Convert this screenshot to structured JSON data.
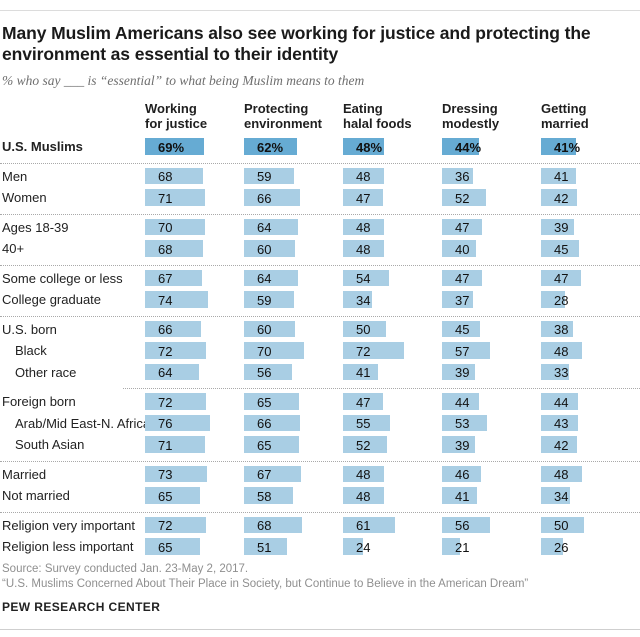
{
  "colors": {
    "bar_highlight": "#66abd3",
    "bar_default": "#a9cee4"
  },
  "chart_data": {
    "type": "bar",
    "title": "Many Muslim Americans also see working for justice and protecting the\nenvironment as essential to their identity",
    "subtitle": "% who say ___ is “essential” to what being Muslim means to them",
    "unit": "%",
    "value_range": [
      0,
      100
    ],
    "legend_position": "none",
    "grid": false,
    "columns": [
      "Working\nfor justice",
      "Protecting\nenvironment",
      "Eating\nhalal foods",
      "Dressing\nmodestly",
      "Getting\nmarried"
    ],
    "rows": [
      {
        "label": "U.S. Muslims",
        "values": [
          69,
          62,
          48,
          44,
          41
        ],
        "highlight": true,
        "show_percent_sign": true,
        "separator_after": "full"
      },
      {
        "label": "Men",
        "values": [
          68,
          59,
          48,
          36,
          41
        ]
      },
      {
        "label": "Women",
        "values": [
          71,
          66,
          47,
          52,
          42
        ],
        "separator_after": "full"
      },
      {
        "label": "Ages 18-39",
        "values": [
          70,
          64,
          48,
          47,
          39
        ]
      },
      {
        "label": "40+",
        "values": [
          68,
          60,
          48,
          40,
          45
        ],
        "separator_after": "full"
      },
      {
        "label": "Some college or less",
        "values": [
          67,
          64,
          54,
          47,
          47
        ]
      },
      {
        "label": "College graduate",
        "values": [
          74,
          59,
          34,
          37,
          28
        ],
        "separator_after": "full"
      },
      {
        "label": "U.S. born",
        "values": [
          66,
          60,
          50,
          45,
          38
        ]
      },
      {
        "label": "Black",
        "values": [
          72,
          70,
          72,
          57,
          48
        ],
        "indent": true
      },
      {
        "label": "Other race",
        "values": [
          64,
          56,
          41,
          39,
          33
        ],
        "indent": true,
        "separator_after": "partial"
      },
      {
        "label": "Foreign born",
        "values": [
          72,
          65,
          47,
          44,
          44
        ]
      },
      {
        "label": "Arab/Mid East-N. Africa",
        "values": [
          76,
          66,
          55,
          53,
          43
        ],
        "indent": true
      },
      {
        "label": "South Asian",
        "values": [
          71,
          65,
          52,
          39,
          42
        ],
        "indent": true,
        "separator_after": "full"
      },
      {
        "label": "Married",
        "values": [
          73,
          67,
          48,
          46,
          48
        ]
      },
      {
        "label": "Not married",
        "values": [
          65,
          58,
          48,
          41,
          34
        ],
        "separator_after": "full"
      },
      {
        "label": "Religion very important",
        "values": [
          72,
          68,
          61,
          56,
          50
        ]
      },
      {
        "label": "Religion less important",
        "values": [
          65,
          51,
          24,
          21,
          26
        ]
      }
    ]
  },
  "footer": {
    "source": "Source: Survey conducted Jan. 23-May 2, 2017.",
    "report": "“U.S. Muslims Concerned About Their Place in Society, but Continue to Believe in the American Dream”",
    "brand": "PEW RESEARCH CENTER"
  }
}
